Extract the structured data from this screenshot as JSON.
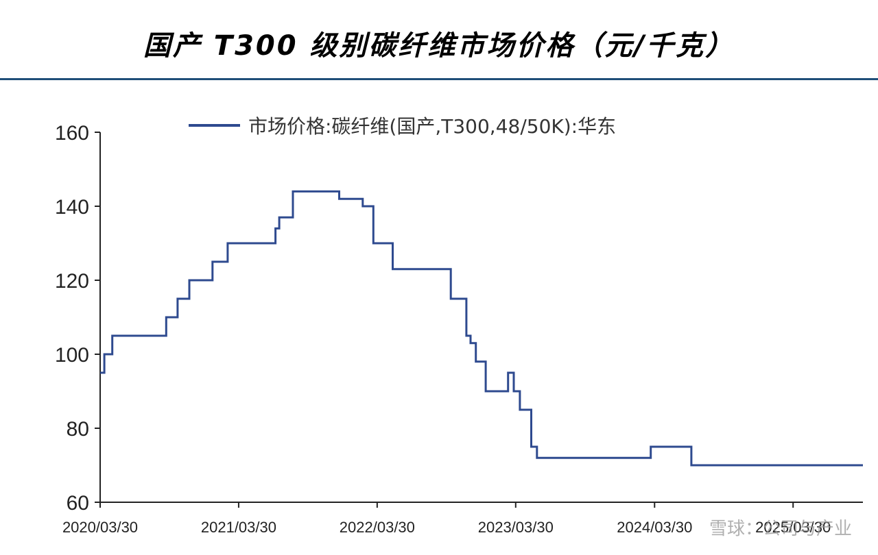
{
  "title": "国产 T300 级别碳纤维市场价格（元/千克）",
  "watermark": "雪球：公司与产业",
  "colors": {
    "line": "#2e4a8f",
    "divider": "#1f4e79",
    "axis": "#222222"
  },
  "chart_data": {
    "type": "line",
    "step": true,
    "title": "国产 T300 级别碳纤维市场价格（元/千克）",
    "xlabel": "",
    "ylabel": "",
    "ylim": [
      60,
      160
    ],
    "yticks": [
      60,
      80,
      100,
      120,
      140,
      160
    ],
    "xlim": [
      "2020-03-30",
      "2025-09-30"
    ],
    "xticks": [
      "2020/03/30",
      "2021/03/30",
      "2022/03/30",
      "2023/03/30",
      "2024/03/30",
      "2025/03/30"
    ],
    "grid": false,
    "legend_position": "top-center",
    "series": [
      {
        "name": "市场价格:碳纤维(国产,T300,48/50K):华东",
        "color": "#2e4a8f",
        "points": [
          [
            "2020-03-30",
            95
          ],
          [
            "2020-04-10",
            100
          ],
          [
            "2020-05-01",
            105
          ],
          [
            "2020-09-20",
            110
          ],
          [
            "2020-10-20",
            115
          ],
          [
            "2020-11-20",
            120
          ],
          [
            "2021-01-20",
            125
          ],
          [
            "2021-03-01",
            130
          ],
          [
            "2021-07-05",
            134
          ],
          [
            "2021-07-15",
            137
          ],
          [
            "2021-08-20",
            144
          ],
          [
            "2021-12-20",
            142
          ],
          [
            "2022-02-20",
            140
          ],
          [
            "2022-03-20",
            130
          ],
          [
            "2022-05-10",
            123
          ],
          [
            "2022-10-10",
            115
          ],
          [
            "2022-11-20",
            105
          ],
          [
            "2022-12-01",
            103
          ],
          [
            "2022-12-15",
            98
          ],
          [
            "2023-01-10",
            90
          ],
          [
            "2023-03-10",
            95
          ],
          [
            "2023-03-25",
            90
          ],
          [
            "2023-04-10",
            85
          ],
          [
            "2023-05-10",
            75
          ],
          [
            "2023-05-25",
            72
          ],
          [
            "2024-03-20",
            75
          ],
          [
            "2024-07-05",
            70
          ],
          [
            "2025-09-30",
            70
          ]
        ]
      }
    ]
  }
}
